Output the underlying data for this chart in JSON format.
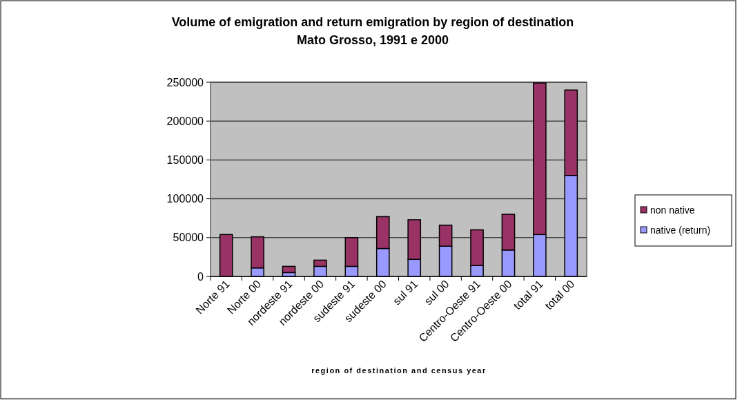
{
  "chart_data": {
    "type": "bar",
    "title": "Volume of emigration and return emigration by region of destination",
    "subtitle": "Mato Grosso, 1991 e 2000",
    "xlabel": "region of destination and census year",
    "categories": [
      "Norte 91",
      "Norte 00",
      "nordeste 91",
      "nordeste 00",
      "sudeste 91",
      "sudeste 00",
      "sul 91",
      "sul 00",
      "Centro-Oeste 91",
      "Centro-Oeste 00",
      "total 91",
      "total 00"
    ],
    "series": [
      {
        "name": "native (return)",
        "color": "#9999ff",
        "values": [
          null,
          11000,
          5000,
          13000,
          13000,
          36000,
          22000,
          39000,
          14000,
          34000,
          54000,
          130000
        ]
      },
      {
        "name": "non native",
        "color": "#993366",
        "values": [
          54000,
          40000,
          8000,
          8000,
          37000,
          41000,
          51000,
          27000,
          46000,
          46000,
          195000,
          110000
        ]
      }
    ],
    "stacked": true,
    "ylim": [
      0,
      250000
    ],
    "yticks": [
      0,
      50000,
      100000,
      150000,
      200000,
      250000
    ],
    "grid": "y",
    "legend": "right"
  }
}
